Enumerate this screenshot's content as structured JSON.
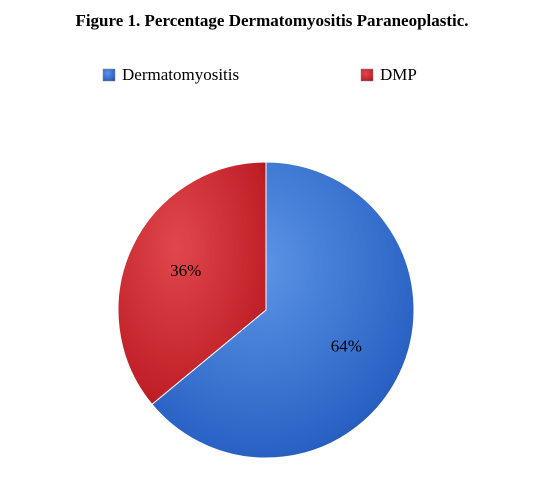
{
  "chart_data": {
    "type": "pie",
    "title": "Figure 1. Percentage Dermatomyositis Paraneoplastic.",
    "categories": [
      "Dermatomyositis",
      "DMP"
    ],
    "values": [
      64,
      36
    ],
    "value_labels": [
      "64%",
      "36%"
    ],
    "colors": [
      "#2f6fd0",
      "#c8232a"
    ]
  }
}
